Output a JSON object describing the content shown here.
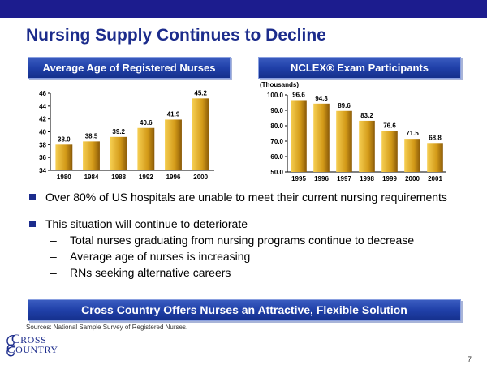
{
  "slide": {
    "title": "Nursing Supply Continues to Decline",
    "page_number": "7",
    "sources": "Sources: National Sample Survey of Registered Nurses."
  },
  "left_chart": {
    "banner": "Average Age of Registered Nurses"
  },
  "right_chart": {
    "banner": "NCLEX® Exam Participants",
    "unit_label": "(Thousands)"
  },
  "bullets": [
    {
      "text": "Over 80% of US hospitals are unable to meet their current nursing requirements",
      "subs": []
    },
    {
      "text": "This situation will continue to deteriorate",
      "subs": [
        "Total nurses graduating from nursing programs continue to decrease",
        "Average age of nurses is increasing",
        "RNs seeking alternative careers"
      ]
    }
  ],
  "bottom_banner": "Cross Country Offers Nurses an Attractive, Flexible Solution",
  "logo": {
    "line1": "CROSS",
    "line2": "COUNTRY"
  },
  "colors": {
    "banner": "#2040a8",
    "bar_light": "#f6cf52",
    "bar_dark": "#8a5a08",
    "title": "#1c2c8c",
    "topbar": "#1c1c8e"
  },
  "chart_data": [
    {
      "type": "bar",
      "title": "Average Age of Registered Nurses",
      "categories": [
        "1980",
        "1984",
        "1988",
        "1992",
        "1996",
        "2000"
      ],
      "values": [
        38.0,
        38.5,
        39.2,
        40.6,
        41.9,
        45.2
      ],
      "labels": [
        "38.0",
        "38.5",
        "39.2",
        "40.6",
        "41.9",
        "45.2"
      ],
      "ylim": [
        34,
        46
      ],
      "yticks": [
        34,
        36,
        38,
        40,
        42,
        44,
        46
      ],
      "ytick_labels": [
        "34",
        "36",
        "38",
        "40",
        "42",
        "44",
        "46"
      ],
      "xlabel": "",
      "ylabel": ""
    },
    {
      "type": "bar",
      "title": "NCLEX® Exam Participants",
      "categories": [
        "1995",
        "1996",
        "1997",
        "1998",
        "1999",
        "2000",
        "2001"
      ],
      "values": [
        96.6,
        94.3,
        89.6,
        83.2,
        76.6,
        71.5,
        68.8
      ],
      "labels": [
        "96.6",
        "94.3",
        "89.6",
        "83.2",
        "76.6",
        "71.5",
        "68.8"
      ],
      "ylim": [
        50,
        100
      ],
      "yticks": [
        50,
        60,
        70,
        80,
        90,
        100
      ],
      "ytick_labels": [
        "50.0",
        "60.0",
        "70.0",
        "80.0",
        "90.0",
        "100.0"
      ],
      "ylabel": "(Thousands)",
      "xlabel": ""
    }
  ]
}
